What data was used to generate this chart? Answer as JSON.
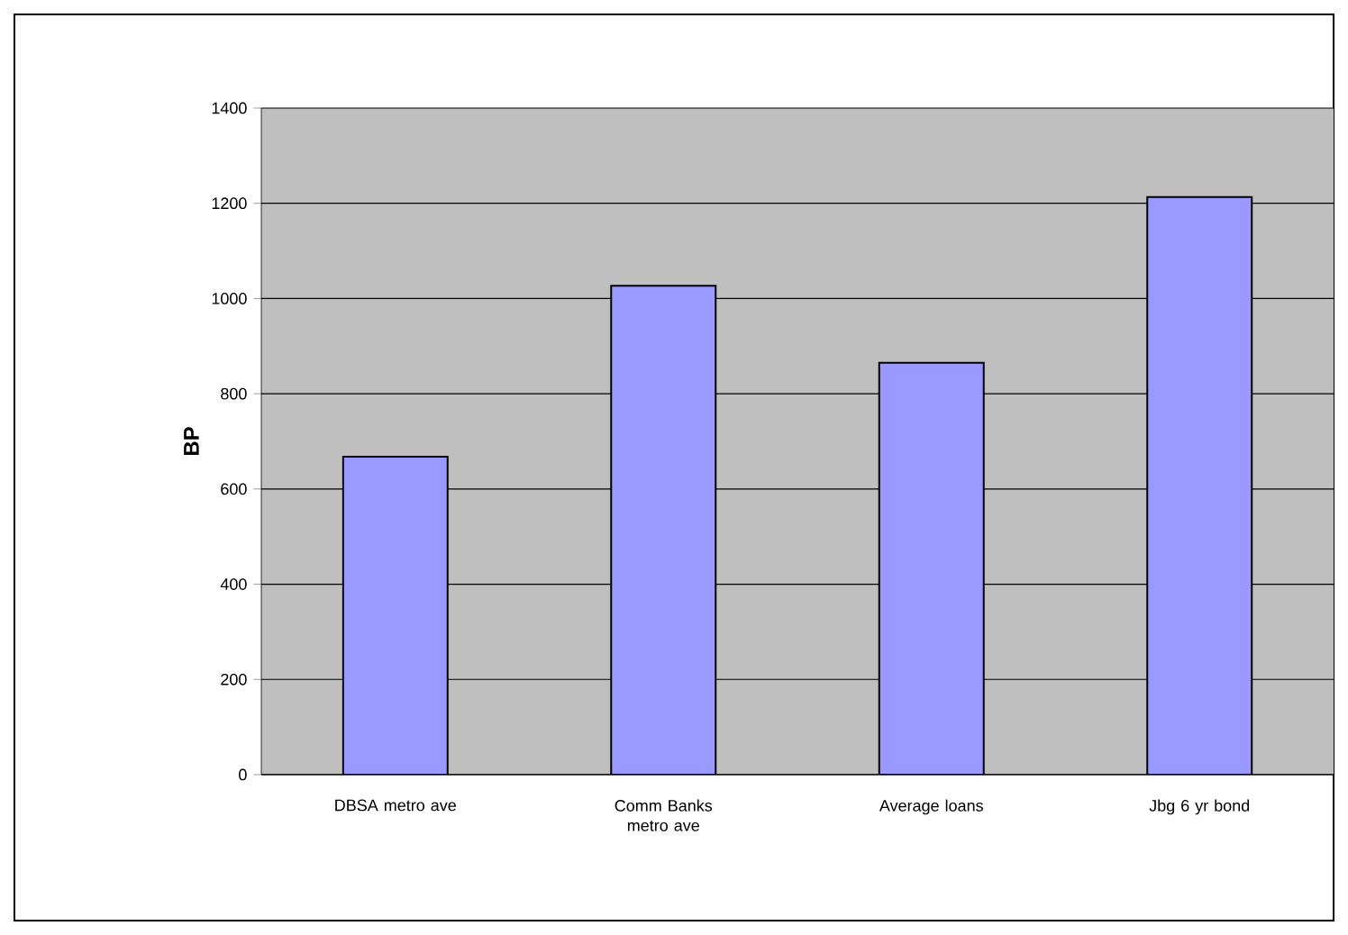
{
  "chart_data": {
    "type": "bar",
    "ylabel": "BP",
    "categories": [
      "DBSA metro ave",
      "Comm Banks metro ave",
      "Average loans",
      "Jbg 6 yr bond"
    ],
    "values": [
      668,
      1027,
      865,
      1213
    ],
    "color": "#9999ff",
    "ylim": [
      0,
      1400
    ],
    "yticks": [
      0,
      200,
      400,
      600,
      800,
      1000,
      1200,
      1400
    ],
    "grid": "y"
  }
}
